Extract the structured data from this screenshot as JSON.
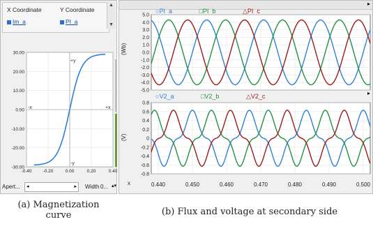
{
  "left": {
    "headers": [
      "X Coordinate",
      "Y Coordinate"
    ],
    "sources": [
      "Im_a",
      "PI_a"
    ],
    "mag_ticks_y": [
      "30.00",
      "20.00",
      "10.00",
      "0.00",
      "-10.00",
      "-20.00",
      "-30.00"
    ],
    "mag_ticks_x": [
      "-0.40",
      "-0.20",
      "0.00",
      "0.20",
      "0.40"
    ],
    "axis_marks": [
      "+y",
      "-x",
      "+x",
      "-y"
    ],
    "aperture_label": "Apert...",
    "width_label": "Width",
    "width_value": "0..."
  },
  "right": {
    "top_legend": [
      "PI_a",
      "PI_b",
      "PI_c"
    ],
    "bottom_legend": [
      "V2_a",
      "V2_b",
      "V2_c"
    ],
    "top_ylabel": "(Wb)",
    "bottom_ylabel": "(V)",
    "top_ticks": [
      "5.0",
      "4.0",
      "3.0",
      "2.0",
      "1.0",
      "0.0",
      "-1.0",
      "-2.0",
      "-3.0",
      "-4.0",
      "-5.0"
    ],
    "bottom_ticks": [
      "0.8",
      "0.6",
      "0.4",
      "0.2",
      "0",
      "-0.2",
      "-0.4",
      "-0.6",
      "-0.8"
    ],
    "x_label": "x",
    "x_ticks": [
      "0.440",
      "0.450",
      "0.460",
      "0.470",
      "0.480",
      "0.490",
      "0.500"
    ],
    "series_colors": [
      "#2f80d6",
      "#249044",
      "#9a1b1b"
    ]
  },
  "captions": {
    "a": [
      "(a)  Magnetization",
      "curve"
    ],
    "b": "(b)  Flux and voltage at secondary side"
  }
}
